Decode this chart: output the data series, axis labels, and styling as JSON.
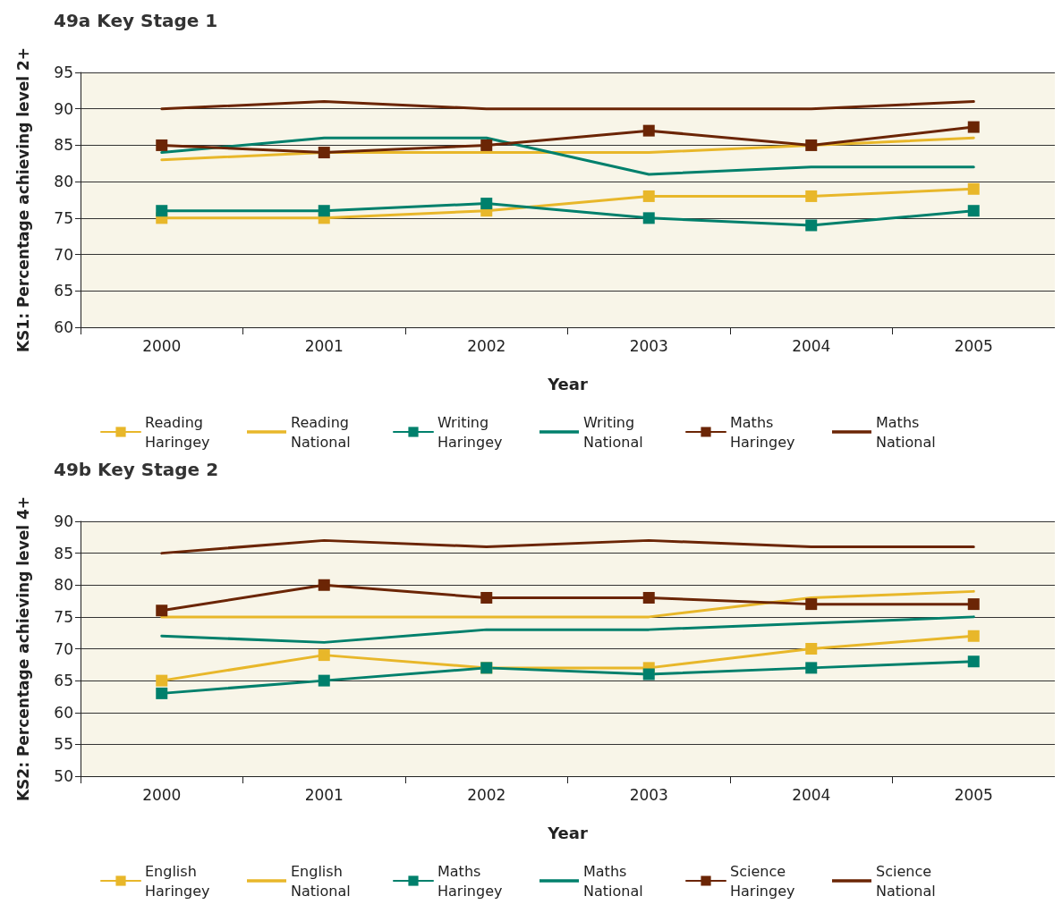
{
  "chart_data": [
    {
      "type": "line",
      "title": "49a Key Stage 1",
      "xlabel": "Year",
      "ylabel": "KS1: Percentage achieving level 2+",
      "categories": [
        "2000",
        "2001",
        "2002",
        "2003",
        "2004",
        "2005"
      ],
      "ylim": [
        60,
        95
      ],
      "yticks": [
        60,
        65,
        70,
        75,
        80,
        85,
        90,
        95
      ],
      "grid": "y",
      "legend": "bottom",
      "line_style": "solid",
      "series": [
        {
          "name": "Reading Haringey",
          "color": "#e8b72a",
          "marker": "square",
          "values": [
            75,
            75,
            76,
            78,
            78,
            79
          ]
        },
        {
          "name": "Reading National",
          "color": "#e8b72a",
          "marker": "none",
          "values": [
            83,
            84,
            84,
            84,
            85,
            86
          ]
        },
        {
          "name": "Writing Haringey",
          "color": "#00806c",
          "marker": "square",
          "values": [
            76,
            76,
            77,
            75,
            74,
            76
          ]
        },
        {
          "name": "Writing National",
          "color": "#00806c",
          "marker": "none",
          "values": [
            84,
            86,
            86,
            81,
            82,
            82
          ]
        },
        {
          "name": "Maths Haringey",
          "color": "#6b2505",
          "marker": "square",
          "values": [
            85,
            84,
            85,
            87,
            85,
            87.5
          ]
        },
        {
          "name": "Maths National",
          "color": "#6b2505",
          "marker": "none",
          "values": [
            90,
            91,
            90,
            90,
            90,
            91
          ]
        }
      ]
    },
    {
      "type": "line",
      "title": "49b Key Stage 2",
      "xlabel": "Year",
      "ylabel": "KS2: Percentage achieving level 4+",
      "categories": [
        "2000",
        "2001",
        "2002",
        "2003",
        "2004",
        "2005"
      ],
      "ylim": [
        50,
        90
      ],
      "yticks": [
        50,
        55,
        60,
        65,
        70,
        75,
        80,
        85,
        90
      ],
      "grid": "y",
      "legend": "bottom",
      "line_style": "solid",
      "series": [
        {
          "name": "English Haringey",
          "color": "#e8b72a",
          "marker": "square",
          "values": [
            65,
            69,
            67,
            67,
            70,
            72
          ]
        },
        {
          "name": "English National",
          "color": "#e8b72a",
          "marker": "none",
          "values": [
            75,
            75,
            75,
            75,
            78,
            79
          ]
        },
        {
          "name": "Maths Haringey",
          "color": "#00806c",
          "marker": "square",
          "values": [
            63,
            65,
            67,
            66,
            67,
            68
          ]
        },
        {
          "name": "Maths National",
          "color": "#00806c",
          "marker": "none",
          "values": [
            72,
            71,
            73,
            73,
            74,
            75
          ]
        },
        {
          "name": "Science Haringey",
          "color": "#6b2505",
          "marker": "square",
          "values": [
            76,
            80,
            78,
            78,
            77,
            77
          ]
        },
        {
          "name": "Science National",
          "color": "#6b2505",
          "marker": "none",
          "values": [
            85,
            87,
            86,
            87,
            86,
            86
          ]
        }
      ]
    }
  ]
}
